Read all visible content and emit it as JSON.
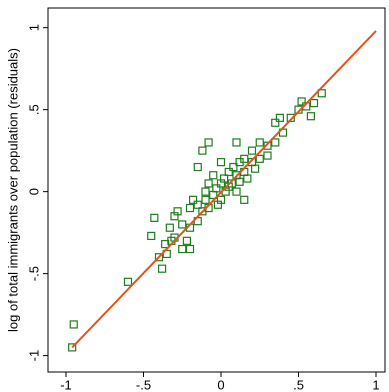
{
  "chart_data": {
    "type": "scatter",
    "y_label": "log of total immigrants over population (residuals)",
    "xlim": [
      -1.116,
      1.058
    ],
    "ylim": [
      -1.1,
      1.12
    ],
    "xticks": [
      -1,
      {
        "value": -0.5,
        "label": "-.5"
      },
      0,
      {
        "value": 0.5,
        "label": ".5"
      },
      1
    ],
    "yticks": [
      -1,
      {
        "value": -0.5,
        "label": "-.5"
      },
      0,
      {
        "value": 0.5,
        "label": ".5"
      },
      1
    ],
    "points": {
      "color": "#1e7d1e",
      "x": [
        -0.96,
        -0.95,
        -0.6,
        -0.38,
        -0.43,
        -0.35,
        -0.36,
        -0.32,
        -0.3,
        -0.33,
        -0.3,
        -0.28,
        -0.25,
        -0.25,
        -0.22,
        -0.2,
        -0.2,
        -0.18,
        -0.15,
        -0.15,
        -0.12,
        -0.1,
        -0.1,
        -0.08,
        -0.08,
        -0.05,
        -0.05,
        -0.03,
        -0.02,
        0,
        0,
        0.02,
        0.03,
        0.05,
        0.05,
        0.07,
        0.08,
        0.1,
        0.1,
        0.12,
        0.12,
        0.15,
        0.15,
        0.17,
        0.2,
        0.2,
        0.22,
        0.25,
        0.25,
        0.3,
        0.3,
        0.35,
        0.35,
        0.38,
        0.4,
        0.45,
        0.5,
        0.52,
        0.55,
        0.58,
        0.6,
        0.65,
        -0.15,
        -0.12,
        0.1,
        -0.08,
        -0.4,
        0.0,
        0.15,
        -0.2,
        -0.45
      ],
      "y": [
        -0.95,
        -0.81,
        -0.55,
        -0.47,
        -0.16,
        -0.38,
        -0.32,
        -0.3,
        -0.28,
        -0.22,
        -0.15,
        -0.12,
        -0.2,
        -0.35,
        -0.3,
        -0.22,
        -0.1,
        -0.05,
        -0.08,
        -0.18,
        -0.12,
        0.0,
        -0.05,
        -0.1,
        0.05,
        -0.02,
        0.1,
        0.02,
        -0.08,
        0.05,
        -0.05,
        0.08,
        0.0,
        0.12,
        0.03,
        0.05,
        0.15,
        0.1,
        0.0,
        0.18,
        0.06,
        0.12,
        0.2,
        0.08,
        0.18,
        0.25,
        0.14,
        0.3,
        0.2,
        0.28,
        0.22,
        0.3,
        0.42,
        0.45,
        0.36,
        0.45,
        0.5,
        0.55,
        0.52,
        0.46,
        0.54,
        0.6,
        0.15,
        0.25,
        0.3,
        0.3,
        -0.4,
        0.18,
        -0.05,
        -0.35,
        -0.27
      ]
    },
    "fit": {
      "color": "#e2541c",
      "x": [
        -0.96,
        1
      ],
      "y": [
        -0.95,
        0.98
      ]
    }
  }
}
